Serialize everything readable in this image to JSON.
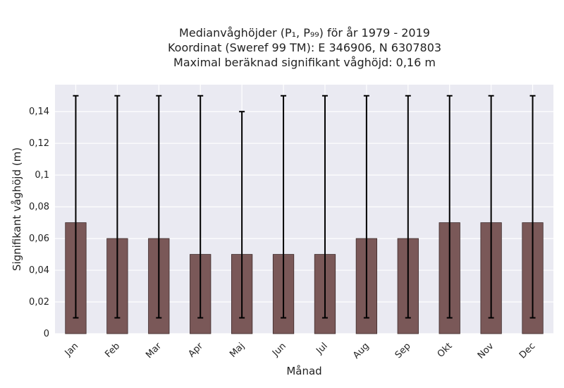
{
  "chart_data": {
    "type": "bar",
    "title_lines": [
      "Medianvåghöjder (P₁, P₉₉) för år 1979 - 2019",
      "Koordinat (Sweref 99 TM): E 346906, N 6307803",
      "Maximal beräknad signifikant våghöjd: 0,16 m"
    ],
    "xlabel": "Månad",
    "ylabel": "Signifikant våghöjd (m)",
    "categories": [
      "Jan",
      "Feb",
      "Mar",
      "Apr",
      "Maj",
      "Jun",
      "Jul",
      "Aug",
      "Sep",
      "Okt",
      "Nov",
      "Dec"
    ],
    "values": [
      0.07,
      0.06,
      0.06,
      0.05,
      0.05,
      0.05,
      0.05,
      0.06,
      0.06,
      0.07,
      0.07,
      0.07
    ],
    "err_low": [
      0.01,
      0.01,
      0.01,
      0.01,
      0.01,
      0.01,
      0.01,
      0.01,
      0.01,
      0.01,
      0.01,
      0.01
    ],
    "err_high": [
      0.15,
      0.15,
      0.15,
      0.15,
      0.14,
      0.15,
      0.15,
      0.15,
      0.15,
      0.15,
      0.15,
      0.15
    ],
    "yticks": [
      0,
      0.02,
      0.04,
      0.06,
      0.08,
      0.1,
      0.12,
      0.14
    ],
    "ytick_labels": [
      "0",
      "0,02",
      "0,04",
      "0,06",
      "0,08",
      "0,1",
      "0,12",
      "0,14"
    ],
    "ylim": [
      0,
      0.157
    ],
    "grid": true,
    "colors": {
      "bar": "#7a5858",
      "background": "#eaeaf2",
      "errorbar": "#000000"
    }
  }
}
